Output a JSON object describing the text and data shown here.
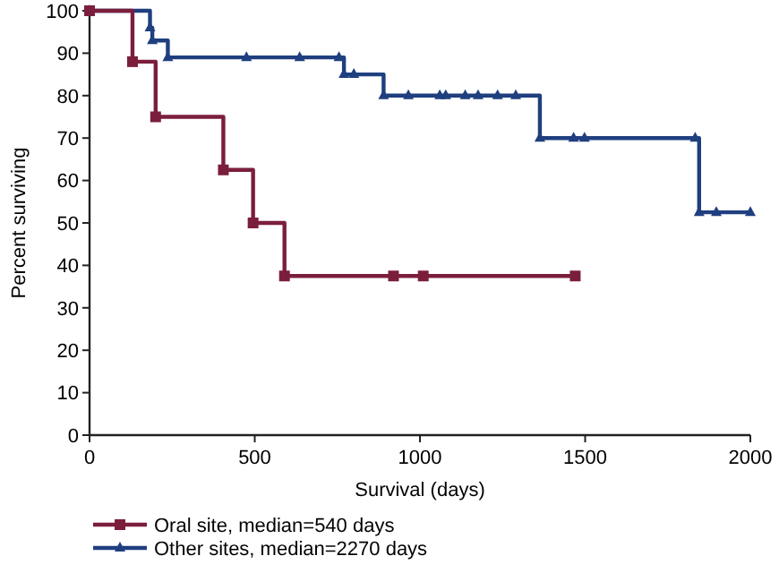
{
  "chart_data": {
    "type": "step",
    "xlabel": "Survival (days)",
    "ylabel": "Percent surviving",
    "xlim": [
      0,
      2000
    ],
    "ylim": [
      0,
      100
    ],
    "xticks": [
      0,
      500,
      1000,
      1500,
      2000
    ],
    "yticks": [
      0,
      10,
      20,
      30,
      40,
      50,
      60,
      70,
      80,
      90,
      100
    ],
    "legend": "bottom",
    "grid": false,
    "line_style": "solid",
    "series": [
      {
        "name": "Oral site, median=540 days",
        "color": "#7b1e3c",
        "marker": "square",
        "x": [
          0,
          130,
          200,
          405,
          495,
          590,
          920,
          1010,
          1470
        ],
        "values": [
          100,
          88,
          75,
          62.5,
          50,
          37.5,
          37.5,
          37.5,
          37.5
        ]
      },
      {
        "name": "Other sites, median=2270 days",
        "color": "#1f3f7f",
        "marker": "triangle",
        "x": [
          0,
          183,
          190,
          237,
          475,
          636,
          755,
          770,
          800,
          890,
          965,
          1060,
          1078,
          1137,
          1176,
          1235,
          1290,
          1363,
          1465,
          1498,
          1833,
          1845,
          1897,
          2000
        ],
        "values": [
          100,
          96,
          93,
          89,
          89,
          89,
          89,
          85,
          85,
          80,
          80,
          80,
          80,
          80,
          80,
          80,
          80,
          70,
          70,
          70,
          70,
          52.5,
          52.5,
          52.5
        ]
      }
    ]
  }
}
